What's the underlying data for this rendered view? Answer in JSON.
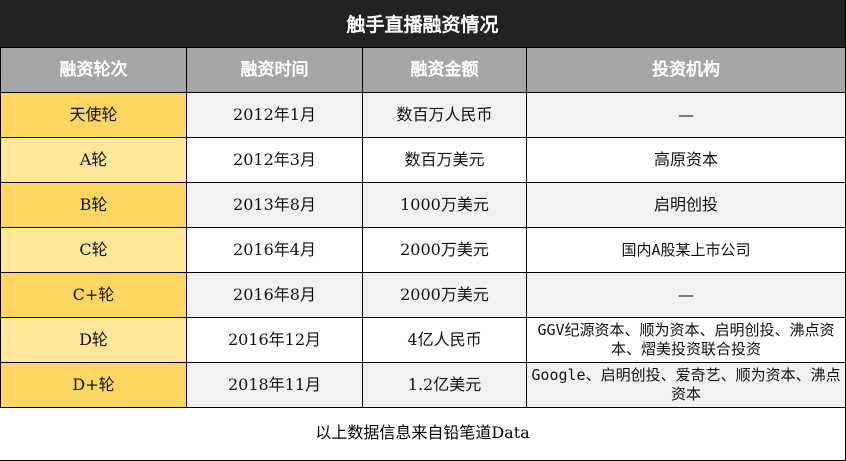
{
  "title": "触手直播融资情况",
  "headers": [
    "融资轮次",
    "融资时间",
    "融资金额",
    "投资机构"
  ],
  "rows": [
    {
      "round": "天使轮",
      "date": "2012年1月",
      "amount": "数百万人民币",
      "investors": "—"
    },
    {
      "round": "A轮",
      "date": "2012年3月",
      "amount": "数百万美元",
      "investors": "高原资本"
    },
    {
      "round": "B轮",
      "date": "2013年8月",
      "amount": "1000万美元",
      "investors": "启明创投"
    },
    {
      "round": "C轮",
      "date": "2016年4月",
      "amount": "2000万美元",
      "investors": "国内A股某上市公司"
    },
    {
      "round": "C+轮",
      "date": "2016年8月",
      "amount": "2000万美元",
      "investors": "—"
    },
    {
      "round": "D轮",
      "date": "2016年12月",
      "amount": "4亿人民币",
      "investors": "GGV纪源资本、顺为资本、启明创投、沸点资本、熠美投资联合投资"
    },
    {
      "round": "D+轮",
      "date": "2018年11月",
      "amount": "1.2亿美元",
      "investors": "Google、启明创投、爱奇艺、顺为资本、沸点资本"
    }
  ],
  "footer": "以上数据信息来自铅笔道Data",
  "colors": {
    "title_bg": "#222222",
    "header_bg": "#a6a6a6",
    "round_dark": "#fdd663",
    "round_light": "#ffe699",
    "row_alt": "#f2f2f2"
  }
}
